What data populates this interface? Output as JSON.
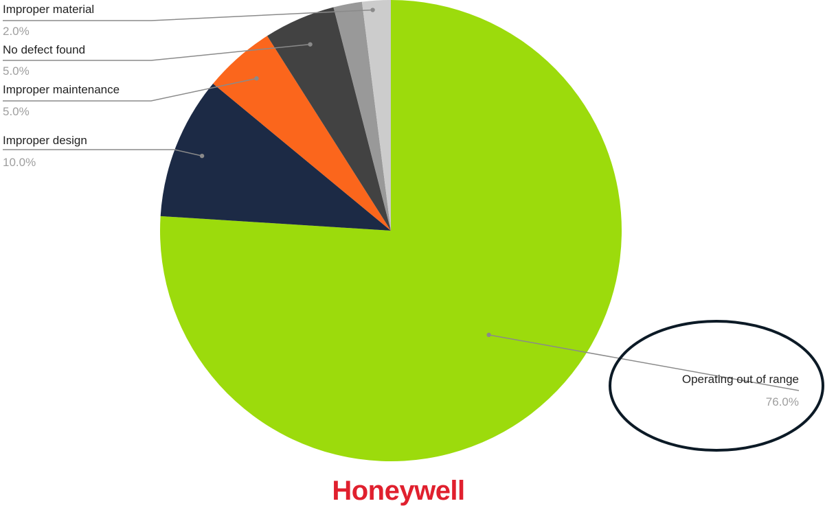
{
  "chart_data": {
    "type": "pie",
    "slices": [
      {
        "label": "Operating out of range",
        "value": 76.0,
        "value_label": "76.0%",
        "color": "#9cdb0c"
      },
      {
        "label": "Improper design",
        "value": 10.0,
        "value_label": "10.0%",
        "color": "#1c2a45"
      },
      {
        "label": "Improper maintenance",
        "value": 5.0,
        "value_label": "5.0%",
        "color": "#fb661c"
      },
      {
        "label": "No defect found",
        "value": 5.0,
        "value_label": "5.0%",
        "color": "#424242"
      },
      {
        "label": "Improper material",
        "value": 2.0,
        "value_label": "2.0%",
        "color": "#999999"
      },
      {
        "label": "",
        "value": 2.0,
        "value_label": "",
        "color": "#cccccc"
      }
    ],
    "start_angle": "12 o'clock",
    "direction": "clockwise",
    "highlight": {
      "slice": "Operating out of range",
      "style": "dark outline ellipse around label",
      "color": "#0c1a26"
    }
  },
  "brand": {
    "name": "Honeywell",
    "color": "#e0202e"
  }
}
